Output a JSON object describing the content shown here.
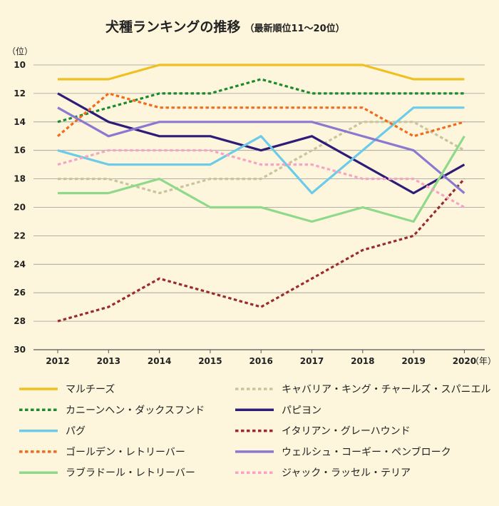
{
  "chart_data": {
    "type": "line",
    "title": "犬種ランキングの推移",
    "subtitle": "（最新順位11〜20位）",
    "y_unit_label": "（位）",
    "x_unit_label": "（年）",
    "ylim": [
      30,
      10
    ],
    "y_inverted": true,
    "y_ticks": [
      10,
      12,
      14,
      16,
      18,
      20,
      22,
      24,
      26,
      28,
      30
    ],
    "x": [
      "2012",
      "2013",
      "2014",
      "2015",
      "2016",
      "2017",
      "2018",
      "2019",
      "2020"
    ],
    "legend_position": "bottom",
    "series": [
      {
        "name": "マルチーズ",
        "color": "#f0c020",
        "dashed": false,
        "values": [
          11,
          11,
          10,
          10,
          10,
          10,
          10,
          11,
          11
        ]
      },
      {
        "name": "キャバリア・キング・チャールズ・スパニエル",
        "color": "#c9c49b",
        "dashed": true,
        "values": [
          18,
          18,
          19,
          18,
          18,
          16,
          14,
          14,
          16
        ]
      },
      {
        "name": "カニーンヘン・ダックスフンド",
        "color": "#1a8a2c",
        "dashed": true,
        "values": [
          14,
          13,
          12,
          12,
          11,
          12,
          12,
          12,
          12
        ]
      },
      {
        "name": "パピヨン",
        "color": "#2e1d78",
        "dashed": false,
        "values": [
          12,
          14,
          15,
          15,
          16,
          15,
          17,
          19,
          17
        ]
      },
      {
        "name": "パグ",
        "color": "#6ccbe8",
        "dashed": false,
        "values": [
          16,
          17,
          17,
          17,
          15,
          19,
          16,
          13,
          13
        ]
      },
      {
        "name": "イタリアン・グレーハウンド",
        "color": "#9b2a2e",
        "dashed": true,
        "values": [
          28,
          27,
          25,
          26,
          27,
          25,
          23,
          22,
          18
        ]
      },
      {
        "name": "ゴールデン・レトリーバー",
        "color": "#f26a1b",
        "dashed": true,
        "values": [
          15,
          12,
          13,
          13,
          13,
          13,
          13,
          15,
          14
        ]
      },
      {
        "name": "ウェルシュ・コーギー・ペンブローク",
        "color": "#8b78d0",
        "dashed": false,
        "values": [
          13,
          15,
          14,
          14,
          14,
          14,
          15,
          16,
          19
        ]
      },
      {
        "name": "ラブラドール・レトリーバー",
        "color": "#8fd98a",
        "dashed": false,
        "values": [
          19,
          19,
          18,
          20,
          20,
          21,
          20,
          21,
          15
        ]
      },
      {
        "name": "ジャック・ラッセル・テリア",
        "color": "#f7a3c6",
        "dashed": true,
        "values": [
          17,
          16,
          16,
          16,
          17,
          17,
          18,
          18,
          20
        ]
      }
    ]
  }
}
